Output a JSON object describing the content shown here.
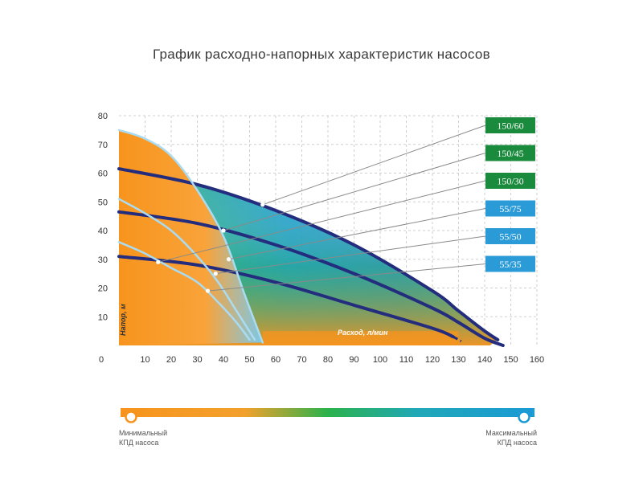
{
  "title": "График расходно-напорных характеристик насосов",
  "colors": {
    "min_efficiency": "#f7941d",
    "max_efficiency": "#1a9ad6",
    "mid_efficiency": "#2bb24c",
    "curve": "#232c7d",
    "legend_green": "#1a8a3c",
    "legend_blue": "#2a9bd7"
  },
  "chart_data": {
    "type": "line",
    "xlabel": "Расход, л/мин",
    "ylabel": "Напор, м",
    "xlim": [
      0,
      160
    ],
    "ylim": [
      0,
      80
    ],
    "x_ticks": [
      0,
      10,
      20,
      30,
      40,
      50,
      60,
      70,
      80,
      90,
      100,
      110,
      120,
      130,
      140,
      150,
      160
    ],
    "y_ticks": [
      10,
      20,
      30,
      40,
      50,
      60,
      70,
      80
    ],
    "grid": true,
    "legend_placement": "right",
    "series": [
      {
        "name": "150/60",
        "color": "#1a8a3c",
        "points": [
          [
            0,
            61.5
          ],
          [
            30,
            56
          ],
          [
            60,
            47
          ],
          [
            90,
            35
          ],
          [
            120,
            19
          ],
          [
            130,
            12
          ],
          [
            140,
            5
          ],
          [
            145,
            2
          ]
        ],
        "marker": [
          55,
          49
        ]
      },
      {
        "name": "150/45",
        "color": "#1a8a3c",
        "points": [
          [
            0,
            46.5
          ],
          [
            30,
            42.5
          ],
          [
            60,
            35
          ],
          [
            90,
            25
          ],
          [
            120,
            13
          ],
          [
            130,
            8
          ],
          [
            140,
            2.5
          ],
          [
            147,
            0
          ]
        ],
        "marker": [
          40,
          40
        ]
      },
      {
        "name": "150/30",
        "color": "#1a8a3c",
        "points": [
          [
            0,
            31
          ],
          [
            30,
            28
          ],
          [
            60,
            22
          ],
          [
            90,
            14
          ],
          [
            120,
            6
          ],
          [
            128,
            3
          ]
        ],
        "marker": [
          15,
          29
        ]
      },
      {
        "name": "55/75",
        "color": "#2a9bd7",
        "points": [
          [
            0,
            75
          ],
          [
            10,
            72
          ],
          [
            20,
            66
          ],
          [
            30,
            54
          ],
          [
            40,
            38
          ],
          [
            48,
            18
          ],
          [
            55,
            1
          ]
        ],
        "marker": [
          42,
          30
        ]
      },
      {
        "name": "55/50",
        "color": "#2a9bd7",
        "points": [
          [
            0,
            51
          ],
          [
            10,
            46
          ],
          [
            20,
            40
          ],
          [
            30,
            31
          ],
          [
            38,
            22
          ],
          [
            45,
            12
          ],
          [
            52,
            2
          ]
        ],
        "marker": [
          37,
          25
        ]
      },
      {
        "name": "55/35",
        "color": "#2a9bd7",
        "points": [
          [
            0,
            36
          ],
          [
            10,
            32
          ],
          [
            20,
            27
          ],
          [
            30,
            22
          ],
          [
            38,
            15
          ],
          [
            45,
            8
          ],
          [
            50,
            2
          ]
        ],
        "marker": [
          34,
          19
        ]
      }
    ]
  },
  "efficiency_scale": {
    "min_label_line1": "Минимальный",
    "min_label_line2": "КПД насоса",
    "max_label_line1": "Максимальный",
    "max_label_line2": "КПД насоса"
  }
}
